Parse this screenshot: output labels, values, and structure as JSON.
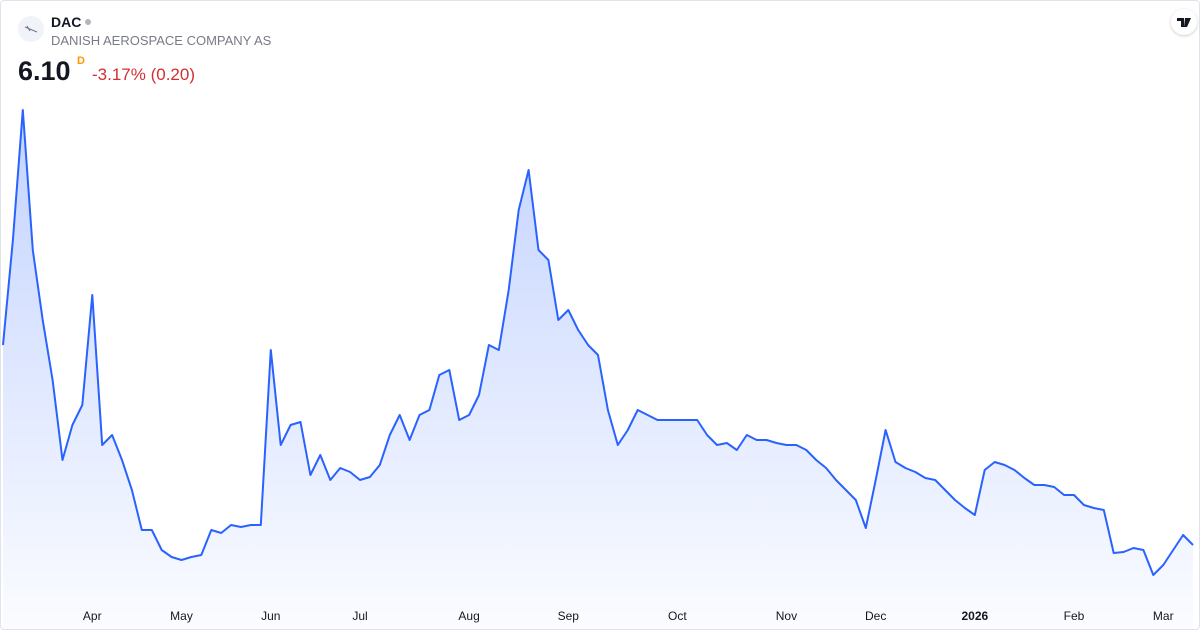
{
  "header": {
    "symbol": "DAC",
    "name": "DANISH AEROSPACE COMPANY AS",
    "price": "6.10",
    "price_flag": "D",
    "change": "-3.17% (0.20)"
  },
  "chart_data": {
    "type": "area",
    "color": "#2962ff",
    "categories": [
      null,
      null,
      null,
      null,
      null,
      null,
      null,
      null,
      null,
      "Apr",
      null,
      null,
      null,
      null,
      null,
      null,
      null,
      null,
      "May",
      null,
      null,
      null,
      null,
      null,
      null,
      null,
      null,
      "Jun",
      null,
      null,
      null,
      null,
      null,
      null,
      null,
      null,
      "Jul",
      null,
      null,
      null,
      null,
      null,
      null,
      null,
      null,
      null,
      null,
      "Aug",
      null,
      null,
      null,
      null,
      null,
      null,
      null,
      null,
      null,
      "Sep",
      null,
      null,
      null,
      null,
      null,
      null,
      null,
      null,
      null,
      null,
      "Oct",
      null,
      null,
      null,
      null,
      null,
      null,
      null,
      null,
      null,
      null,
      "Nov",
      null,
      null,
      null,
      null,
      null,
      null,
      null,
      null,
      "Dec",
      null,
      null,
      null,
      null,
      null,
      null,
      null,
      null,
      null,
      "2026",
      null,
      null,
      null,
      null,
      null,
      null,
      null,
      null,
      null,
      "Feb",
      null,
      null,
      null,
      null,
      null,
      null,
      null,
      null,
      "Mar",
      null,
      null,
      null
    ],
    "values": [
      12.1,
      15.25,
      19.15,
      14.95,
      12.85,
      11.05,
      8.65,
      9.7,
      10.3,
      13.6,
      9.1,
      9.4,
      8.65,
      7.75,
      6.55,
      6.55,
      5.95,
      5.74,
      5.65,
      5.74,
      5.8,
      6.55,
      6.46,
      6.7,
      6.64,
      6.7,
      6.7,
      11.95,
      9.1,
      9.7,
      9.79,
      8.2,
      8.8,
      8.05,
      8.41,
      8.29,
      8.05,
      8.14,
      8.5,
      9.4,
      10.0,
      9.25,
      10.0,
      10.15,
      11.2,
      11.35,
      9.85,
      10.0,
      10.6,
      12.1,
      11.95,
      13.75,
      16.15,
      17.35,
      14.95,
      14.65,
      12.85,
      13.15,
      12.55,
      12.1,
      11.8,
      10.15,
      9.1,
      9.55,
      10.15,
      10.0,
      9.85,
      9.85,
      9.85,
      9.85,
      9.85,
      9.4,
      9.1,
      9.16,
      8.95,
      9.4,
      9.25,
      9.25,
      9.16,
      9.1,
      9.1,
      8.95,
      8.65,
      8.41,
      8.05,
      7.75,
      7.45,
      6.61,
      8.05,
      9.55,
      8.59,
      8.41,
      8.29,
      8.11,
      8.05,
      7.75,
      7.45,
      7.21,
      7.0,
      8.35,
      8.59,
      8.5,
      8.35,
      8.11,
      7.9,
      7.9,
      7.84,
      7.6,
      7.6,
      7.3,
      7.21,
      7.15,
      5.86,
      5.89,
      6.01,
      5.95,
      5.2,
      5.5,
      5.95,
      6.4,
      6.1
    ],
    "ylim": [
      4.45,
      19.6
    ]
  }
}
